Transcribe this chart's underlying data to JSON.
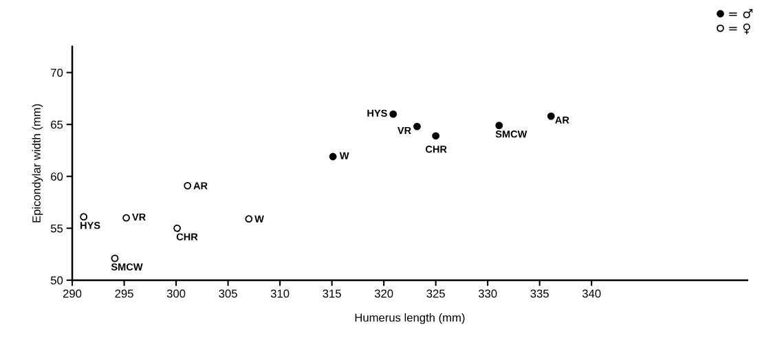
{
  "chart_data": {
    "type": "scatter",
    "xlabel": "Humerus length (mm)",
    "ylabel": "Epicondylar width (mm)",
    "xlim": [
      290,
      355
    ],
    "ylim": [
      50,
      72.5
    ],
    "xticks": [
      290,
      295,
      300,
      305,
      310,
      315,
      320,
      325,
      330,
      335,
      340
    ],
    "yticks": [
      50,
      55,
      60,
      65,
      70
    ],
    "grid": false,
    "legend": "top right",
    "marker": "circle",
    "series": [
      {
        "name": "= ♂",
        "color": "#000000",
        "x": [
          315.1,
          320.9,
          323.2,
          325.0,
          331.1,
          336.1
        ],
        "values": [
          61.9,
          66.0,
          64.8,
          63.9,
          64.9,
          65.8
        ]
      },
      {
        "name": "= ♀",
        "color": "#000000",
        "x": [
          291.1,
          295.2,
          301.1,
          300.1,
          307.0,
          294.1
        ],
        "values": [
          56.1,
          56.0,
          59.1,
          55.0,
          55.9,
          52.1
        ]
      }
    ],
    "annotations": [
      {
        "text": "W",
        "x": 315.1,
        "y": 61.9
      },
      {
        "text": "HYS",
        "x": 320.9,
        "y": 66.0
      },
      {
        "text": "VR",
        "x": 323.2,
        "y": 64.8
      },
      {
        "text": "CHR",
        "x": 325.0,
        "y": 63.9
      },
      {
        "text": "SMCW",
        "x": 331.1,
        "y": 64.9
      },
      {
        "text": "AR",
        "x": 336.1,
        "y": 65.8
      },
      {
        "text": "HYS",
        "x": 291.1,
        "y": 56.1
      },
      {
        "text": "VR",
        "x": 295.2,
        "y": 56.0
      },
      {
        "text": "AR",
        "x": 301.1,
        "y": 59.1
      },
      {
        "text": "CHR",
        "x": 300.1,
        "y": 55.0
      },
      {
        "text": "W",
        "x": 307.0,
        "y": 55.9
      },
      {
        "text": "SMCW",
        "x": 294.1,
        "y": 52.1
      }
    ]
  }
}
